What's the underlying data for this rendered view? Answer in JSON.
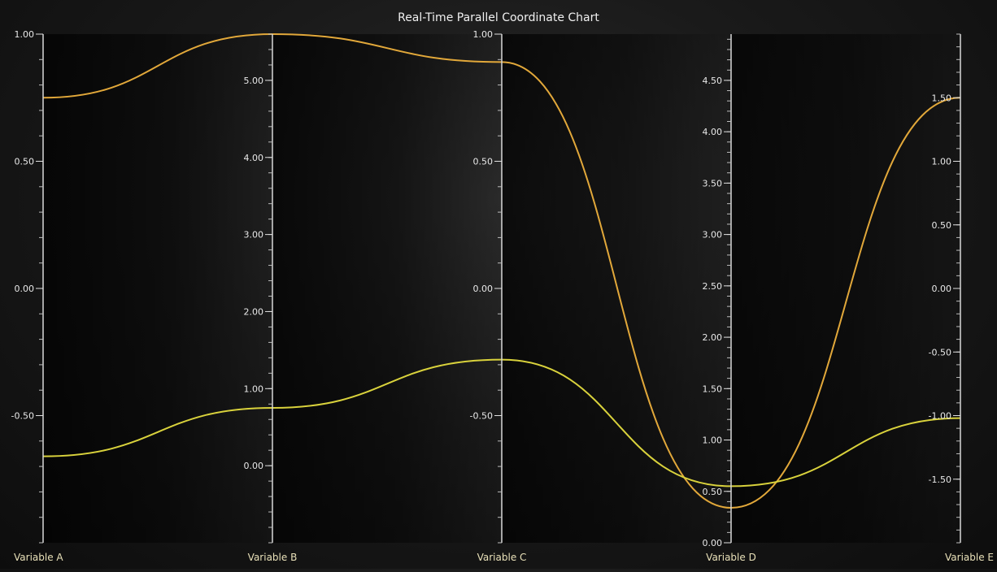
{
  "chart_data": {
    "type": "line",
    "title": "Real-Time Parallel Coordinate Chart",
    "axes": [
      {
        "name": "Variable A",
        "ticks": [
          "1.00",
          "0.50",
          "0.00",
          "-0.50"
        ],
        "tick_values": [
          1.0,
          0.5,
          0.0,
          -0.5
        ],
        "range": [
          -1.0,
          1.0
        ]
      },
      {
        "name": "Variable B",
        "ticks": [
          "5.00",
          "4.00",
          "3.00",
          "2.00",
          "1.00",
          "0.00"
        ],
        "tick_values": [
          5.0,
          4.0,
          3.0,
          2.0,
          1.0,
          0.0
        ],
        "range": [
          -1.0,
          5.6
        ]
      },
      {
        "name": "Variable C",
        "ticks": [
          "1.00",
          "0.50",
          "0.00",
          "-0.50"
        ],
        "tick_values": [
          1.0,
          0.5,
          0.0,
          -0.5
        ],
        "range": [
          -1.0,
          1.0
        ]
      },
      {
        "name": "Variable D",
        "ticks": [
          "4.50",
          "4.00",
          "3.50",
          "3.00",
          "2.50",
          "2.00",
          "1.50",
          "1.00",
          "0.50",
          "0.00"
        ],
        "tick_values": [
          4.5,
          4.0,
          3.5,
          3.0,
          2.5,
          2.0,
          1.5,
          1.0,
          0.5,
          0.0
        ],
        "range": [
          0.0,
          4.95
        ]
      },
      {
        "name": "Variable E",
        "ticks": [
          "1.50",
          "1.00",
          "0.50",
          "0.00",
          "-0.50",
          "-1.00",
          "-1.50"
        ],
        "tick_values": [
          1.5,
          1.0,
          0.5,
          0.0,
          -0.5,
          -1.0,
          -1.5
        ],
        "range": [
          -2.0,
          2.0
        ]
      }
    ],
    "series": [
      {
        "color": "#e2a83a",
        "values": [
          0.75,
          5.6,
          0.89,
          0.34,
          1.5
        ]
      },
      {
        "color": "#d9d23c",
        "values": [
          -0.66,
          0.75,
          -0.28,
          0.55,
          -1.02
        ]
      }
    ],
    "grid": false,
    "legend": "none"
  }
}
